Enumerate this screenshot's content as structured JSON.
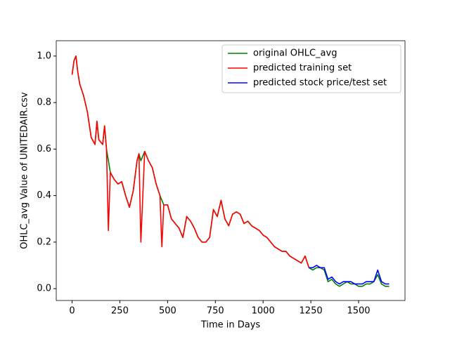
{
  "chart_data": {
    "type": "line",
    "xlabel": "Time in Days",
    "ylabel": "OHLC_avg Value of UNITEDAIR.csv",
    "x": [
      0,
      10,
      20,
      30,
      40,
      60,
      80,
      100,
      120,
      130,
      140,
      160,
      170,
      180,
      190,
      200,
      220,
      240,
      260,
      280,
      300,
      320,
      340,
      350,
      360,
      380,
      400,
      420,
      440,
      460,
      470,
      480,
      500,
      520,
      540,
      560,
      580,
      600,
      620,
      640,
      660,
      680,
      700,
      720,
      740,
      760,
      780,
      800,
      820,
      840,
      860,
      880,
      900,
      920,
      940,
      960,
      980,
      1000,
      1020,
      1040,
      1060,
      1080,
      1100,
      1120,
      1140,
      1160,
      1180,
      1200,
      1220,
      1240,
      1260,
      1280,
      1300,
      1320,
      1340,
      1360,
      1380,
      1400,
      1420,
      1440,
      1460,
      1480,
      1500,
      1520,
      1540,
      1560,
      1580,
      1600,
      1620,
      1640,
      1660
    ],
    "series": [
      {
        "name": "original OHLC_avg",
        "color": "#008000",
        "values": [
          0.92,
          0.98,
          1.0,
          0.93,
          0.88,
          0.83,
          0.76,
          0.65,
          0.62,
          0.72,
          0.64,
          0.62,
          0.7,
          0.6,
          0.55,
          0.5,
          0.47,
          0.45,
          0.46,
          0.4,
          0.35,
          0.42,
          0.55,
          0.58,
          0.55,
          0.59,
          0.55,
          0.52,
          0.45,
          0.4,
          0.38,
          0.36,
          0.36,
          0.3,
          0.28,
          0.26,
          0.22,
          0.31,
          0.29,
          0.26,
          0.22,
          0.2,
          0.2,
          0.22,
          0.34,
          0.31,
          0.38,
          0.3,
          0.27,
          0.32,
          0.33,
          0.32,
          0.28,
          0.29,
          0.27,
          0.26,
          0.25,
          0.23,
          0.22,
          0.2,
          0.18,
          0.17,
          0.16,
          0.16,
          0.14,
          0.13,
          0.12,
          0.11,
          0.14,
          0.09,
          0.08,
          0.09,
          0.09,
          0.08,
          0.03,
          0.04,
          0.02,
          0.01,
          0.02,
          0.03,
          0.02,
          0.02,
          0.01,
          0.01,
          0.02,
          0.02,
          0.03,
          0.06,
          0.02,
          0.01,
          0.01
        ]
      },
      {
        "name": "predicted training set",
        "color": "#ff0000",
        "values": [
          0.92,
          0.98,
          1.0,
          0.93,
          0.88,
          0.83,
          0.76,
          0.65,
          0.62,
          0.72,
          0.64,
          0.62,
          0.7,
          0.6,
          0.25,
          0.5,
          0.47,
          0.45,
          0.46,
          0.4,
          0.35,
          0.42,
          0.55,
          0.58,
          0.2,
          0.59,
          0.55,
          0.52,
          0.45,
          0.4,
          0.18,
          0.36,
          0.36,
          0.3,
          0.28,
          0.26,
          0.22,
          0.31,
          0.29,
          0.26,
          0.22,
          0.2,
          0.2,
          0.22,
          0.34,
          0.31,
          0.38,
          0.3,
          0.27,
          0.32,
          0.33,
          0.32,
          0.28,
          0.29,
          0.27,
          0.26,
          0.25,
          0.23,
          0.22,
          0.2,
          0.18,
          0.17,
          0.16,
          0.16,
          0.14,
          0.13,
          0.12,
          0.11,
          0.14,
          0.09,
          null,
          null,
          null,
          null,
          null,
          null,
          null,
          null,
          null,
          null,
          null,
          null,
          null,
          null,
          null,
          null,
          null,
          null,
          null,
          null,
          null
        ]
      },
      {
        "name": "predicted stock price/test set",
        "color": "#0000ff",
        "values": [
          null,
          null,
          null,
          null,
          null,
          null,
          null,
          null,
          null,
          null,
          null,
          null,
          null,
          null,
          null,
          null,
          null,
          null,
          null,
          null,
          null,
          null,
          null,
          null,
          null,
          null,
          null,
          null,
          null,
          null,
          null,
          null,
          null,
          null,
          null,
          null,
          null,
          null,
          null,
          null,
          null,
          null,
          null,
          null,
          null,
          null,
          null,
          null,
          null,
          null,
          null,
          null,
          null,
          null,
          null,
          null,
          null,
          null,
          null,
          null,
          null,
          null,
          null,
          null,
          null,
          null,
          null,
          null,
          null,
          0.09,
          0.09,
          0.1,
          0.09,
          0.09,
          0.04,
          0.05,
          0.03,
          0.02,
          0.03,
          0.03,
          0.03,
          0.02,
          0.02,
          0.02,
          0.03,
          0.03,
          0.03,
          0.08,
          0.03,
          0.02,
          0.02
        ]
      }
    ],
    "xlim": [
      -83,
      1743
    ],
    "xticks": [
      0,
      250,
      500,
      750,
      1000,
      1250,
      1500
    ],
    "ylim": [
      -0.051,
      1.066
    ],
    "yticks": [
      {
        "value": 0,
        "label": "0.0"
      },
      0.2,
      0.4,
      0.6,
      0.8,
      {
        "value": 1,
        "label": "1.0"
      }
    ],
    "legend": "upper right",
    "grid": false
  }
}
